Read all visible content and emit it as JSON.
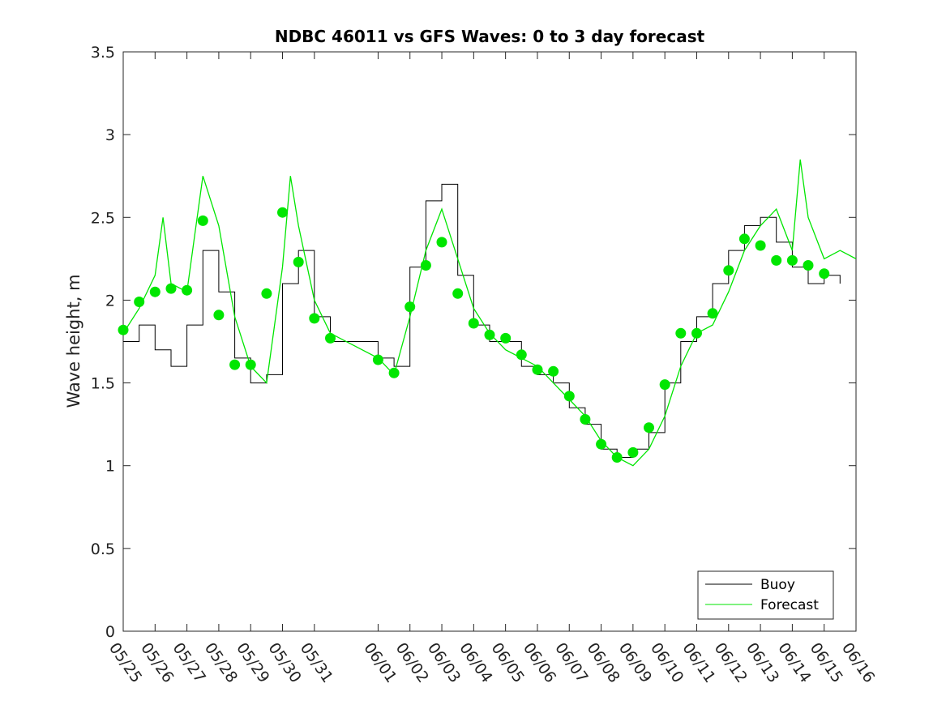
{
  "chart_data": {
    "type": "line",
    "title": "NDBC 46011 vs GFS Waves: 0 to 3 day forecast",
    "xlabel": "",
    "ylabel": "Wave height, m",
    "xlim": [
      "05/25",
      "06/16"
    ],
    "ylim": [
      0,
      3.5
    ],
    "y_ticks": [
      "0",
      "0.5",
      "1",
      "1.5",
      "2",
      "2.5",
      "3",
      "3.5"
    ],
    "x_ticks": [
      "05/25",
      "05/26",
      "05/27",
      "05/28",
      "05/29",
      "05/30",
      "05/31",
      "06/01",
      "06/02",
      "06/03",
      "06/04",
      "06/05",
      "06/06",
      "06/07",
      "06/08",
      "06/09",
      "06/10",
      "06/11",
      "06/12",
      "06/13",
      "06/14",
      "06/15",
      "06/16"
    ],
    "grid": false,
    "legend_position": "bottom-right",
    "legend": [
      "Buoy",
      "Forecast"
    ],
    "colors": {
      "buoy": "#000000",
      "forecast": "#00e600",
      "analysis_points": "#00e600"
    },
    "series": [
      {
        "name": "Buoy",
        "x": [
          "05/25 00:00",
          "05/25 12:00",
          "05/26 00:00",
          "05/26 12:00",
          "05/27 00:00",
          "05/27 12:00",
          "05/28 00:00",
          "05/28 12:00",
          "05/29 00:00",
          "05/29 12:00",
          "05/30 00:00",
          "05/30 12:00",
          "05/31 00:00",
          "05/31 12:00",
          "06/01 00:00",
          "06/01 12:00",
          "06/02 00:00",
          "06/02 12:00",
          "06/03 00:00",
          "06/03 12:00",
          "06/04 00:00",
          "06/04 12:00",
          "06/05 00:00",
          "06/05 12:00",
          "06/06 00:00",
          "06/06 12:00",
          "06/07 00:00",
          "06/07 12:00",
          "06/08 00:00",
          "06/08 12:00",
          "06/09 00:00",
          "06/09 12:00",
          "06/10 00:00",
          "06/10 12:00",
          "06/11 00:00",
          "06/11 12:00",
          "06/12 00:00",
          "06/12 12:00",
          "06/13 00:00",
          "06/13 12:00",
          "06/14 00:00",
          "06/14 12:00",
          "06/15 00:00",
          "06/15 12:00"
        ],
        "values": [
          1.75,
          1.85,
          1.7,
          1.6,
          1.85,
          2.3,
          2.05,
          1.65,
          1.5,
          1.55,
          2.1,
          2.3,
          1.9,
          1.75,
          1.65,
          1.6,
          2.2,
          2.6,
          2.7,
          2.15,
          1.85,
          1.75,
          1.75,
          1.6,
          1.55,
          1.5,
          1.35,
          1.25,
          1.1,
          1.05,
          1.1,
          1.2,
          1.5,
          1.75,
          1.9,
          2.1,
          2.3,
          2.45,
          2.5,
          2.35,
          2.2,
          2.1,
          2.15,
          2.1
        ]
      },
      {
        "name": "Forecast",
        "x": [
          "05/25 00:00",
          "05/25 12:00",
          "05/26 00:00",
          "05/26 06:00",
          "05/26 12:00",
          "05/27 00:00",
          "05/27 06:00",
          "05/27 12:00",
          "05/28 00:00",
          "05/28 12:00",
          "05/29 00:00",
          "05/29 12:00",
          "05/30 00:00",
          "05/30 06:00",
          "05/30 12:00",
          "05/31 00:00",
          "05/31 12:00",
          "06/01 00:00",
          "06/01 12:00",
          "06/02 00:00",
          "06/02 12:00",
          "06/03 00:00",
          "06/03 12:00",
          "06/04 00:00",
          "06/04 12:00",
          "06/05 00:00",
          "06/05 12:00",
          "06/06 00:00",
          "06/06 12:00",
          "06/07 00:00",
          "06/07 12:00",
          "06/08 00:00",
          "06/08 12:00",
          "06/09 00:00",
          "06/09 12:00",
          "06/10 00:00",
          "06/10 12:00",
          "06/11 00:00",
          "06/11 12:00",
          "06/12 00:00",
          "06/12 12:00",
          "06/13 00:00",
          "06/13 12:00",
          "06/14 00:00",
          "06/14 06:00",
          "06/14 12:00",
          "06/15 00:00",
          "06/15 12:00",
          "06/16 00:00"
        ],
        "values": [
          1.8,
          1.95,
          2.15,
          2.5,
          2.1,
          2.05,
          2.4,
          2.75,
          2.45,
          1.9,
          1.6,
          1.5,
          2.2,
          2.75,
          2.45,
          2.0,
          1.8,
          1.65,
          1.55,
          1.9,
          2.3,
          2.55,
          2.25,
          1.95,
          1.8,
          1.7,
          1.65,
          1.6,
          1.5,
          1.4,
          1.3,
          1.15,
          1.05,
          1.0,
          1.1,
          1.3,
          1.6,
          1.8,
          1.85,
          2.05,
          2.3,
          2.45,
          2.55,
          2.3,
          2.85,
          2.5,
          2.25,
          2.3,
          2.25
        ]
      },
      {
        "name": "",
        "marker": "dot",
        "x": [
          "05/25 00:00",
          "05/25 12:00",
          "05/26 00:00",
          "05/26 12:00",
          "05/27 00:00",
          "05/27 12:00",
          "05/28 00:00",
          "05/28 12:00",
          "05/29 00:00",
          "05/29 12:00",
          "05/30 00:00",
          "05/30 12:00",
          "05/31 00:00",
          "05/31 12:00",
          "06/01 00:00",
          "06/01 12:00",
          "06/02 00:00",
          "06/02 12:00",
          "06/03 00:00",
          "06/03 12:00",
          "06/04 00:00",
          "06/04 12:00",
          "06/05 00:00",
          "06/05 12:00",
          "06/06 00:00",
          "06/06 12:00",
          "06/07 00:00",
          "06/07 12:00",
          "06/08 00:00",
          "06/08 12:00",
          "06/09 00:00",
          "06/09 12:00",
          "06/10 00:00",
          "06/10 12:00",
          "06/11 00:00",
          "06/11 12:00",
          "06/12 00:00",
          "06/12 12:00",
          "06/13 00:00",
          "06/13 12:00",
          "06/14 00:00",
          "06/14 12:00",
          "06/15 00:00"
        ],
        "values": [
          1.82,
          1.99,
          2.05,
          2.07,
          2.06,
          2.48,
          1.91,
          1.61,
          1.61,
          2.04,
          2.53,
          2.23,
          1.89,
          1.77,
          1.64,
          1.56,
          1.96,
          2.21,
          2.35,
          2.04,
          1.86,
          1.79,
          1.77,
          1.67,
          1.58,
          1.57,
          1.42,
          1.28,
          1.13,
          1.05,
          1.08,
          1.23,
          1.49,
          1.8,
          1.8,
          1.92,
          2.18,
          2.37,
          2.33,
          2.24,
          2.24,
          2.21,
          2.16
        ]
      }
    ]
  }
}
